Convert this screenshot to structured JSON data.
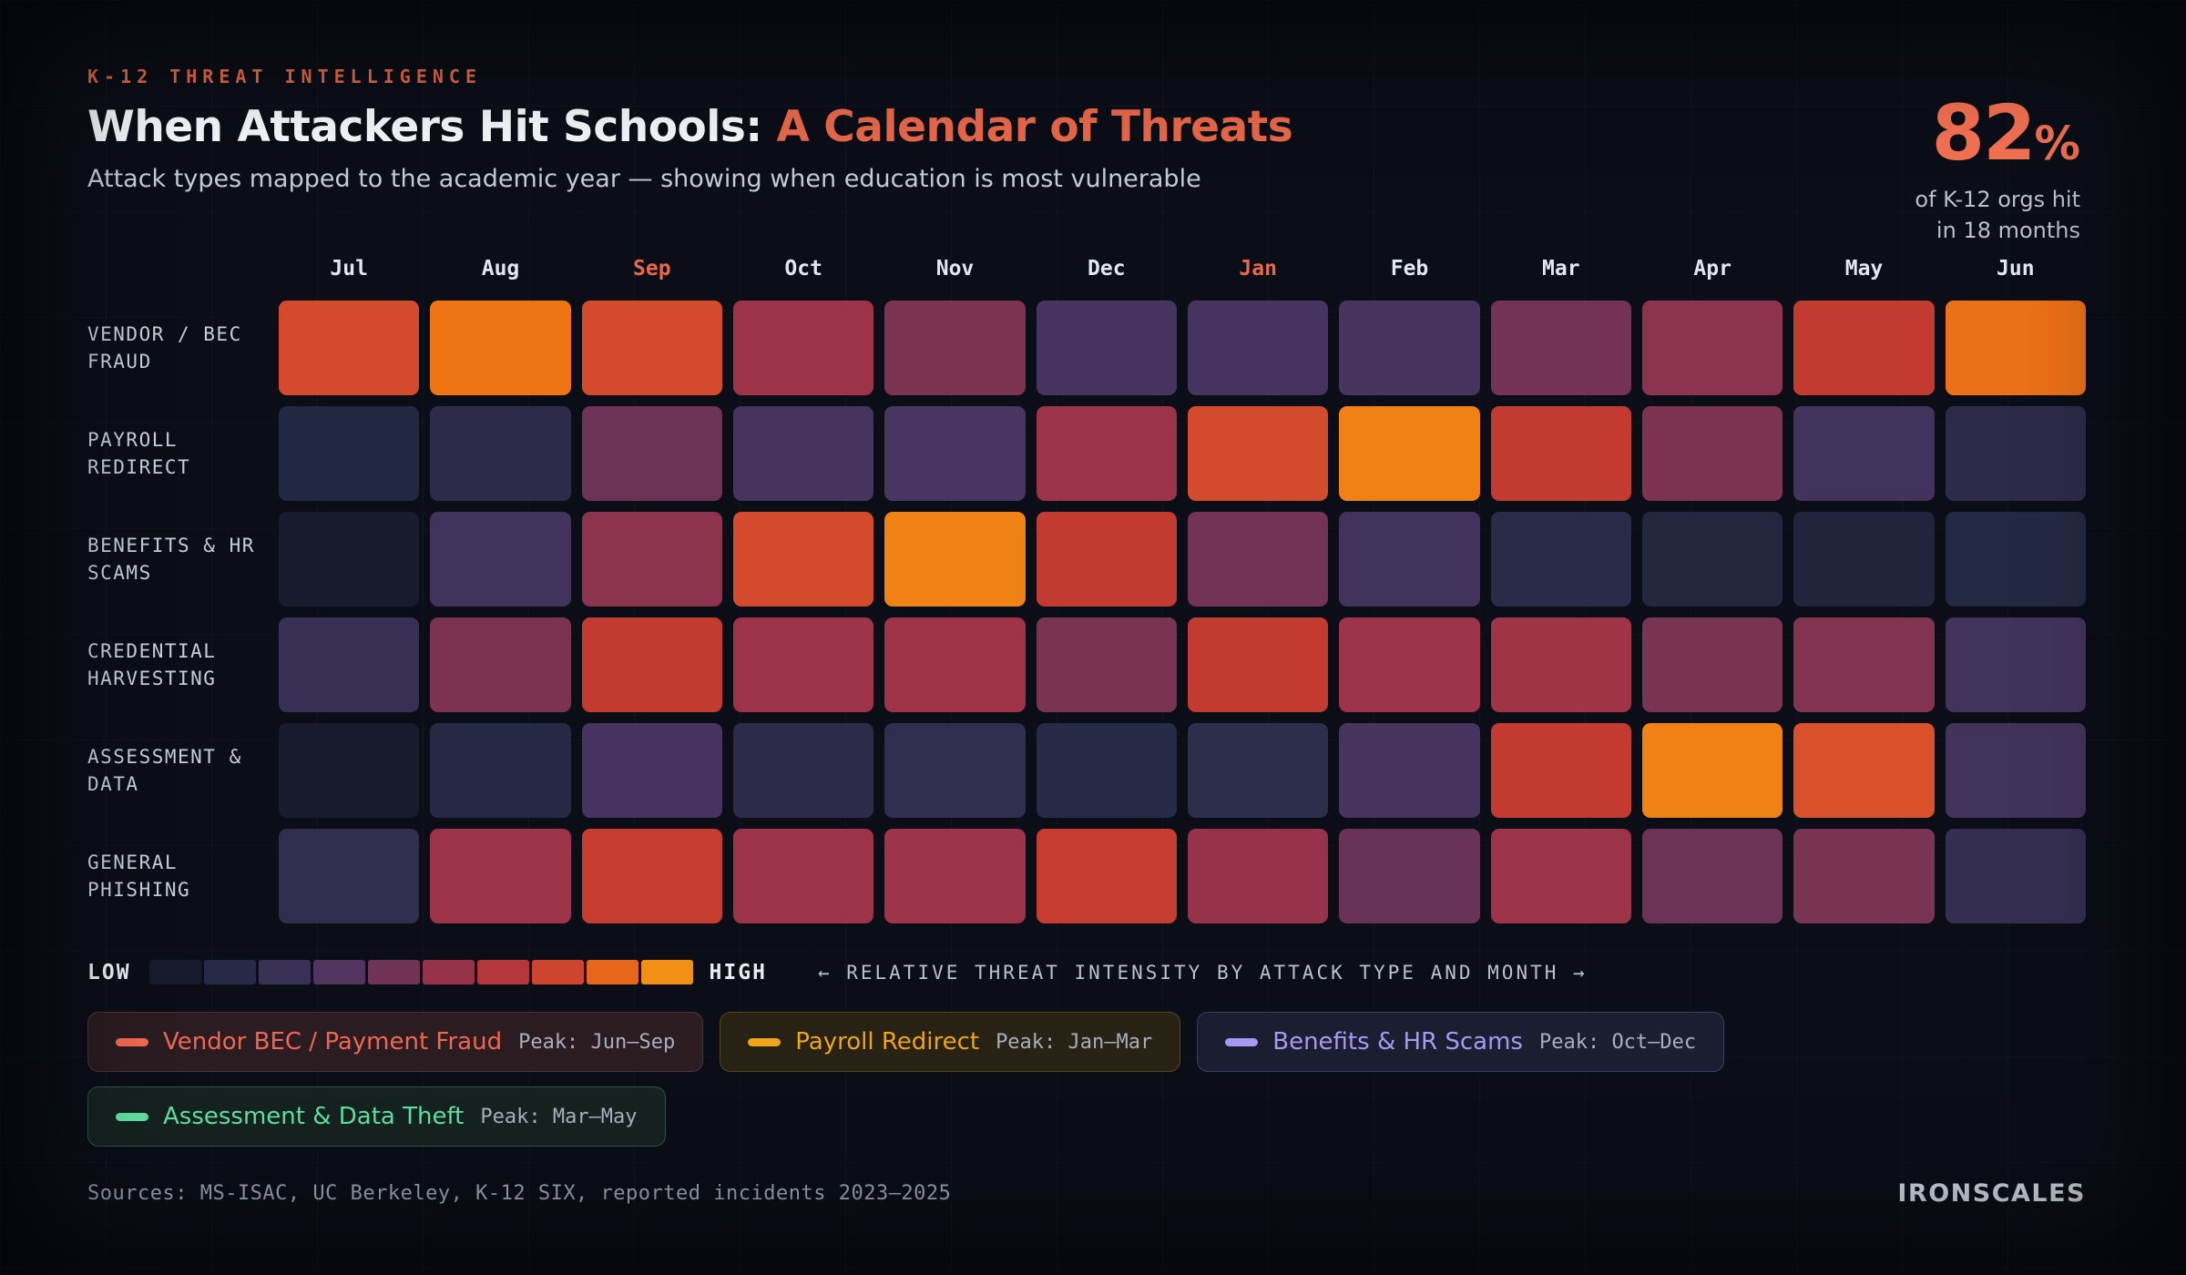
{
  "header": {
    "eyebrow": "K-12 THREAT INTELLIGENCE",
    "title_main": "When Attackers Hit Schools: ",
    "title_accent": "A Calendar of Threats",
    "subtitle": "Attack types mapped to the academic year — showing when education is most vulnerable",
    "stat": {
      "value": "82",
      "suffix": "%",
      "caption_line1": "of K-12 orgs hit",
      "caption_line2": "in 18 months"
    }
  },
  "chart_data": {
    "type": "heatmap",
    "title": "When Attackers Hit Schools: A Calendar of Threats",
    "x_labels": [
      "Jul",
      "Aug",
      "Sep",
      "Oct",
      "Nov",
      "Dec",
      "Jan",
      "Feb",
      "Mar",
      "Apr",
      "May",
      "Jun"
    ],
    "highlighted_x_labels": [
      "Sep",
      "Jan"
    ],
    "value_range": [
      0,
      100
    ],
    "series": [
      {
        "name": "VENDOR / BEC FRAUD",
        "values": [
          86,
          96,
          86,
          60,
          50,
          32,
          32,
          31,
          48,
          55,
          80,
          95
        ]
      },
      {
        "name": "PAYROLL REDIRECT",
        "values": [
          10,
          17,
          45,
          31,
          33,
          60,
          86,
          98,
          80,
          50,
          30,
          17
        ]
      },
      {
        "name": "BENEFITS & HR SCAMS",
        "values": [
          2,
          30,
          55,
          86,
          98,
          80,
          47,
          30,
          15,
          9,
          8,
          11
        ]
      },
      {
        "name": "CREDENTIAL HARVESTING",
        "values": [
          24,
          50,
          80,
          60,
          61,
          49,
          80,
          60,
          62,
          49,
          52,
          30
        ]
      },
      {
        "name": "ASSESSMENT & DATA",
        "values": [
          2,
          12,
          32,
          17,
          20,
          13,
          18,
          31,
          80,
          98,
          88,
          30
        ]
      },
      {
        "name": "GENERAL PHISHING",
        "values": [
          20,
          60,
          81,
          60,
          60,
          81,
          58,
          44,
          60,
          45,
          49,
          22
        ]
      }
    ],
    "palette_stops": [
      [
        0.0,
        "#141828"
      ],
      [
        0.1,
        "#232842"
      ],
      [
        0.2,
        "#302e4e"
      ],
      [
        0.33,
        "#483561"
      ],
      [
        0.46,
        "#6f3356"
      ],
      [
        0.6,
        "#9c3349"
      ],
      [
        0.8,
        "#c33a31"
      ],
      [
        0.88,
        "#d8512a"
      ],
      [
        0.96,
        "#ee7414"
      ],
      [
        1.0,
        "#f29016"
      ]
    ],
    "legend": {
      "low_label": "LOW",
      "high_label": "HIGH",
      "swatch_values": [
        2,
        13,
        25,
        36,
        46,
        58,
        72,
        84,
        93,
        100
      ],
      "note": "← RELATIVE THREAT INTENSITY BY ATTACK TYPE AND MONTH →"
    }
  },
  "key_items": [
    {
      "name": "Vendor BEC / Payment Fraud",
      "peak": "Peak: Jun–Sep",
      "color": "#ef6752",
      "bg": "#2a1c21",
      "border": "#503037"
    },
    {
      "name": "Payroll Redirect",
      "peak": "Peak: Jan–Mar",
      "color": "#f0a41c",
      "bg": "#272214",
      "border": "#57451c"
    },
    {
      "name": "Benefits & HR Scams",
      "peak": "Peak: Oct–Dec",
      "color": "#a59af0",
      "bg": "#1b1d31",
      "border": "#3b3f68"
    },
    {
      "name": "Assessment & Data Theft",
      "peak": "Peak: Mar–May",
      "color": "#5fdfa0",
      "bg": "#152220",
      "border": "#2e5444"
    }
  ],
  "footer": {
    "sources": "Sources: MS-ISAC, UC Berkeley, K-12 SIX, reported incidents 2023–2025",
    "brand": "IRONSCALES"
  }
}
